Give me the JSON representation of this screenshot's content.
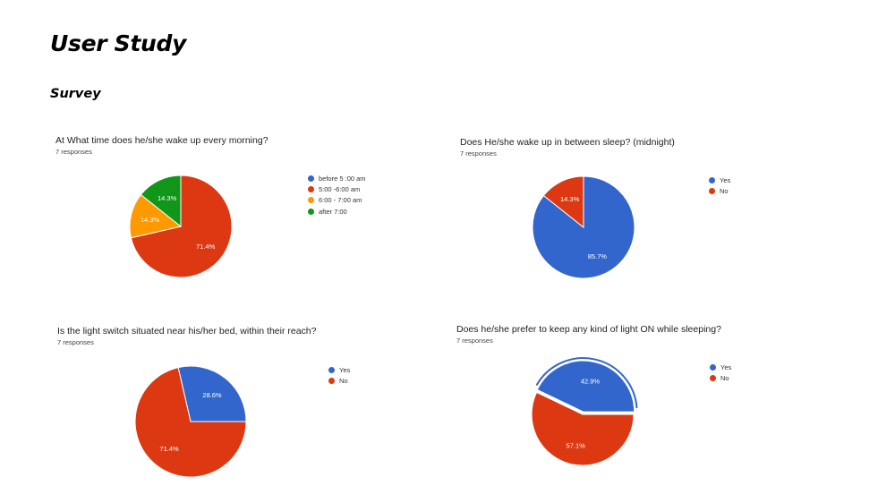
{
  "page": {
    "title": "User Study",
    "section": "Survey"
  },
  "colors": {
    "blue": "#3366cc",
    "red": "#dc3912",
    "orange": "#ff9900",
    "green": "#109618"
  },
  "chart_data": [
    {
      "type": "pie",
      "title": "At What time does he/she wake up every morning?",
      "subtitle": "7 responses",
      "legend_position": "right",
      "slices": [
        {
          "label": "before 5 :00 am",
          "value": 0,
          "display": "",
          "color": "#3366cc"
        },
        {
          "label": "5:00 -6:00 am",
          "value": 71.4,
          "display": "71.4%",
          "color": "#dc3912"
        },
        {
          "label": "6:00 - 7:00 am",
          "value": 14.3,
          "display": "14.3%",
          "color": "#ff9900"
        },
        {
          "label": "after 7:00",
          "value": 14.3,
          "display": "14.3%",
          "color": "#109618"
        }
      ]
    },
    {
      "type": "pie",
      "title": "Does He/she wake up in between sleep? (midnight)",
      "subtitle": "7 responses",
      "legend_position": "right",
      "slices": [
        {
          "label": "Yes",
          "value": 85.7,
          "display": "85.7%",
          "color": "#3366cc"
        },
        {
          "label": "No",
          "value": 14.3,
          "display": "14.3%",
          "color": "#dc3912"
        }
      ]
    },
    {
      "type": "pie",
      "title": "Is the light switch situated near his/her bed, within their reach?",
      "subtitle": "7 responses",
      "legend_position": "right",
      "slices": [
        {
          "label": "Yes",
          "value": 28.6,
          "display": "28.6%",
          "color": "#3366cc"
        },
        {
          "label": "No",
          "value": 71.4,
          "display": "71.4%",
          "color": "#dc3912"
        }
      ]
    },
    {
      "type": "pie",
      "title": "Does he/she prefer to keep any kind of light ON while sleeping?",
      "subtitle": "7 responses",
      "legend_position": "right",
      "slices": [
        {
          "label": "Yes",
          "value": 42.9,
          "display": "42.9%",
          "color": "#3366cc"
        },
        {
          "label": "No",
          "value": 57.1,
          "display": "57.1%",
          "color": "#dc3912"
        }
      ]
    }
  ]
}
